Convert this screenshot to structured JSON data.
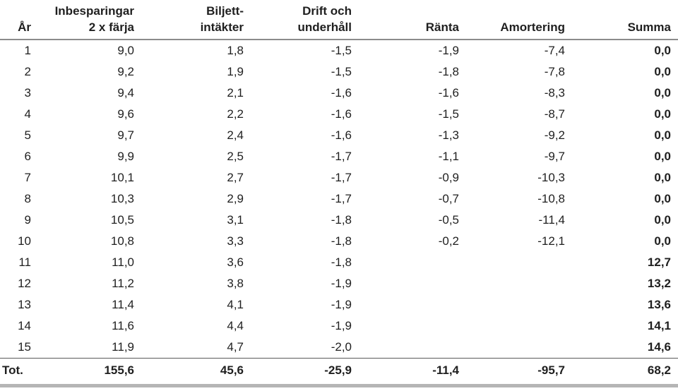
{
  "table": {
    "title": "Ferry investment cash flow table (Swedish)",
    "columns": [
      {
        "id": "ar",
        "header": "År"
      },
      {
        "id": "inbesparingar",
        "header": "Inbesparingar\n2 x färja"
      },
      {
        "id": "biljett",
        "header": "Biljett-\nintäkter"
      },
      {
        "id": "drift",
        "header": "Drift och\nunderhåll"
      },
      {
        "id": "ranta",
        "header": "Ränta"
      },
      {
        "id": "amortering",
        "header": "Amortering"
      },
      {
        "id": "summa",
        "header": "Summa"
      }
    ],
    "rows": [
      [
        "1",
        "9,0",
        "1,8",
        "-1,5",
        "-1,9",
        "-7,4",
        "0,0"
      ],
      [
        "2",
        "9,2",
        "1,9",
        "-1,5",
        "-1,8",
        "-7,8",
        "0,0"
      ],
      [
        "3",
        "9,4",
        "2,1",
        "-1,6",
        "-1,6",
        "-8,3",
        "0,0"
      ],
      [
        "4",
        "9,6",
        "2,2",
        "-1,6",
        "-1,5",
        "-8,7",
        "0,0"
      ],
      [
        "5",
        "9,7",
        "2,4",
        "-1,6",
        "-1,3",
        "-9,2",
        "0,0"
      ],
      [
        "6",
        "9,9",
        "2,5",
        "-1,7",
        "-1,1",
        "-9,7",
        "0,0"
      ],
      [
        "7",
        "10,1",
        "2,7",
        "-1,7",
        "-0,9",
        "-10,3",
        "0,0"
      ],
      [
        "8",
        "10,3",
        "2,9",
        "-1,7",
        "-0,7",
        "-10,8",
        "0,0"
      ],
      [
        "9",
        "10,5",
        "3,1",
        "-1,8",
        "-0,5",
        "-11,4",
        "0,0"
      ],
      [
        "10",
        "10,8",
        "3,3",
        "-1,8",
        "-0,2",
        "-12,1",
        "0,0"
      ],
      [
        "11",
        "11,0",
        "3,6",
        "-1,8",
        "",
        "",
        "12,7"
      ],
      [
        "12",
        "11,2",
        "3,8",
        "-1,9",
        "",
        "",
        "13,2"
      ],
      [
        "13",
        "11,4",
        "4,1",
        "-1,9",
        "",
        "",
        "13,6"
      ],
      [
        "14",
        "11,6",
        "4,4",
        "-1,9",
        "",
        "",
        "14,1"
      ],
      [
        "15",
        "11,9",
        "4,7",
        "-2,0",
        "",
        "",
        "14,6"
      ]
    ],
    "total_row": [
      "Tot.",
      "155,6",
      "45,6",
      "-25,9",
      "-11,4",
      "-95,7",
      "68,2"
    ]
  },
  "colors": {
    "text": "#1f1f1f",
    "header_rule": "#8c8c8c",
    "total_rule": "#595959",
    "bottom_bar": "#b5b5b5",
    "background": "#ffffff"
  }
}
